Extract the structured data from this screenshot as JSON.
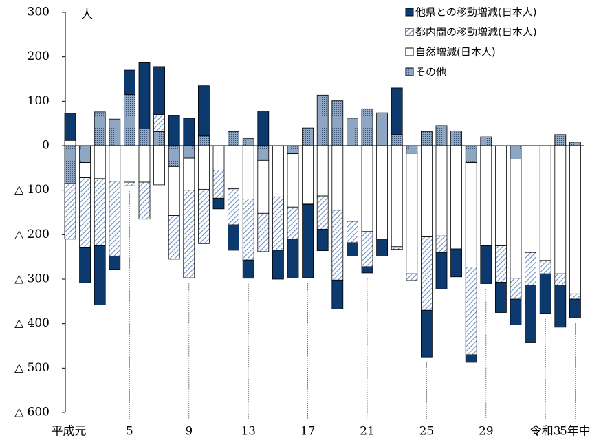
{
  "chart_data": {
    "type": "stacked_bar",
    "y_label": "人",
    "categories": [
      "平成元",
      null,
      null,
      null,
      "5",
      null,
      null,
      null,
      "9",
      null,
      null,
      null,
      "13",
      null,
      null,
      null,
      "17",
      null,
      null,
      null,
      "21",
      null,
      null,
      null,
      "25",
      null,
      null,
      null,
      "29",
      null,
      null,
      null,
      "令和3",
      null,
      "5年中"
    ],
    "series": [
      {
        "name": "その他",
        "color": "#8fa6c3",
        "pattern": "dots",
        "values": [
          -85,
          -38,
          76,
          60,
          115,
          38,
          32,
          -47,
          -28,
          22,
          0,
          32,
          16,
          -33,
          0,
          -18,
          40,
          114,
          101,
          62,
          83,
          74,
          25,
          -17,
          32,
          45,
          33,
          -38,
          20,
          0,
          -30,
          0,
          0,
          25,
          8
        ]
      },
      {
        "name": "自然増減(日本人)",
        "color": "#ffffff",
        "pattern": "solid",
        "values": [
          12,
          -34,
          -74,
          -80,
          -82,
          -82,
          -88,
          -110,
          -72,
          -98,
          -55,
          -97,
          -120,
          -119,
          -115,
          -120,
          -130,
          -113,
          -145,
          -170,
          -193,
          -210,
          -227,
          -271,
          -205,
          -203,
          -232,
          -235,
          -225,
          -225,
          -268,
          -240,
          -258,
          -288,
          -333
        ]
      },
      {
        "name": "都内間の移動増減(日本人)",
        "color": "#6c8ebf",
        "pattern": "hatch",
        "values": [
          -125,
          -156,
          -151,
          -168,
          -8,
          -83,
          38,
          -98,
          -197,
          -122,
          -63,
          -81,
          -137,
          -86,
          -120,
          -72,
          -2,
          -75,
          -157,
          -48,
          -79,
          0,
          -6,
          -15,
          -165,
          -37,
          0,
          -197,
          0,
          -82,
          -47,
          -73,
          -30,
          -25,
          -12
        ]
      },
      {
        "name": "他県との移動増減(日本人)",
        "color": "#0d3a6e",
        "pattern": "solid",
        "values": [
          61,
          -80,
          -133,
          -30,
          55,
          150,
          108,
          68,
          62,
          113,
          -24,
          -57,
          -41,
          78,
          -65,
          -86,
          -165,
          -48,
          -65,
          -30,
          -14,
          -38,
          105,
          0,
          -105,
          -82,
          -63,
          -17,
          -85,
          -68,
          -58,
          -130,
          -89,
          -95,
          -42
        ]
      }
    ],
    "legend_order": [
      3,
      2,
      1,
      0
    ],
    "ylim": [
      -600,
      300
    ],
    "yticks": [
      {
        "value": -600,
        "label": "△ 600"
      },
      {
        "value": -500,
        "label": "△ 500"
      },
      {
        "value": -400,
        "label": "△ 400"
      },
      {
        "value": -300,
        "label": "△ 300"
      },
      {
        "value": -200,
        "label": "△ 200"
      },
      {
        "value": -100,
        "label": "△ 100"
      },
      0,
      100,
      200,
      300
    ]
  }
}
